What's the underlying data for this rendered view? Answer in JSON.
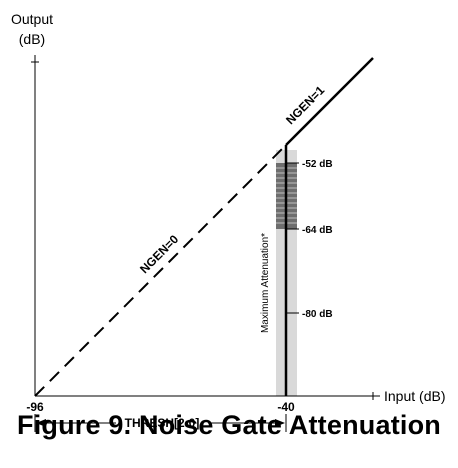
{
  "y_axis": {
    "title_line1": "Output",
    "title_line2": "(dB)"
  },
  "x_axis": {
    "title": "Input (dB)",
    "tick_min": "-96",
    "tick_thresh": "-40"
  },
  "curves": {
    "ngen0_label": "NGEN=0",
    "ngen1_label": "NGEN=1"
  },
  "attenuation": {
    "vertical_label": "Maximum Attenuation*",
    "levels": [
      "-52 dB",
      "-64 dB",
      "-80 dB"
    ]
  },
  "threshold": {
    "label": "THRESH[2:0]"
  },
  "caption": "Figure 9.  Noise Gate Attenuation",
  "colors": {
    "band_light": "#d9d9d9",
    "band_dark": "#6e6e6e",
    "line": "#000000"
  }
}
